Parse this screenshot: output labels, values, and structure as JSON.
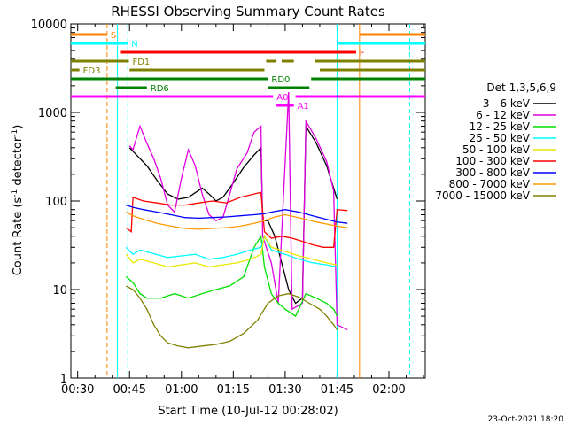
{
  "chart_data": {
    "type": "line",
    "title": "RHESSI Observing Summary Count Rates",
    "xlabel": "Start Time (10-Jul-12 00:28:02)",
    "ylabel_main": "Count Rate (s",
    "ylabel_sup1": "-1",
    "ylabel_mid": " detector",
    "ylabel_sup2": "-1",
    "ylabel_end": ")",
    "yscale": "log",
    "ylim": [
      1,
      10000
    ],
    "xlim_minutes": [
      28.03,
      130.5
    ],
    "x_ticks": [
      {
        "label": "00:30",
        "minutes": 30
      },
      {
        "label": "00:45",
        "minutes": 45
      },
      {
        "label": "01:00",
        "minutes": 60
      },
      {
        "label": "01:15",
        "minutes": 75
      },
      {
        "label": "01:30",
        "minutes": 90
      },
      {
        "label": "01:45",
        "minutes": 105
      },
      {
        "label": "02:00",
        "minutes": 120
      }
    ],
    "y_ticks": [
      {
        "label": "1",
        "value": 1
      },
      {
        "label": "10",
        "value": 10
      },
      {
        "label": "100",
        "value": 100
      },
      {
        "label": "1000",
        "value": 1000
      },
      {
        "label": "10000",
        "value": 10000
      }
    ],
    "legend": {
      "title": "Det 1,3,5,6,9",
      "placement": "right"
    },
    "series": [
      {
        "name": "3 - 6 keV",
        "color": "#000000",
        "points": [
          [
            45,
            400
          ],
          [
            47,
            330
          ],
          [
            50,
            250
          ],
          [
            53,
            170
          ],
          [
            56,
            120
          ],
          [
            59,
            105
          ],
          [
            62,
            110
          ],
          [
            66,
            140
          ],
          [
            68,
            120
          ],
          [
            70,
            100
          ],
          [
            72,
            110
          ],
          [
            75,
            160
          ],
          [
            78,
            240
          ],
          [
            81,
            330
          ],
          [
            83,
            400
          ],
          [
            83.5,
            60
          ],
          [
            85,
            60
          ],
          [
            87,
            40
          ],
          [
            89,
            20
          ],
          [
            91,
            10
          ],
          [
            93,
            7
          ],
          [
            95,
            8
          ],
          [
            96,
            700
          ],
          [
            99,
            450
          ],
          [
            102,
            250
          ],
          [
            104,
            140
          ],
          [
            105,
            105
          ]
        ]
      },
      {
        "name": "6 - 12 keV",
        "color": "#e000e0",
        "points": [
          [
            45,
            420
          ],
          [
            46,
            380
          ],
          [
            48,
            700
          ],
          [
            50,
            450
          ],
          [
            52,
            300
          ],
          [
            54,
            180
          ],
          [
            56,
            90
          ],
          [
            58,
            75
          ],
          [
            60,
            180
          ],
          [
            62,
            380
          ],
          [
            64,
            250
          ],
          [
            66,
            120
          ],
          [
            68,
            70
          ],
          [
            70,
            60
          ],
          [
            72,
            65
          ],
          [
            74,
            120
          ],
          [
            76,
            230
          ],
          [
            79,
            350
          ],
          [
            81,
            600
          ],
          [
            83,
            700
          ],
          [
            83.5,
            40
          ],
          [
            86,
            20
          ],
          [
            88,
            7
          ],
          [
            91,
            1700
          ],
          [
            92,
            6
          ],
          [
            95,
            7
          ],
          [
            96,
            800
          ],
          [
            99,
            500
          ],
          [
            102,
            280
          ],
          [
            104,
            130
          ],
          [
            105,
            4
          ],
          [
            108,
            3.5
          ]
        ]
      },
      {
        "name": "12 - 25 keV",
        "color": "#00e000",
        "points": [
          [
            44,
            14
          ],
          [
            46,
            12
          ],
          [
            48,
            9
          ],
          [
            50,
            8
          ],
          [
            54,
            8
          ],
          [
            58,
            9
          ],
          [
            62,
            8
          ],
          [
            66,
            9
          ],
          [
            70,
            10
          ],
          [
            74,
            11
          ],
          [
            78,
            14
          ],
          [
            81,
            30
          ],
          [
            83,
            40
          ],
          [
            84,
            18
          ],
          [
            86,
            9
          ],
          [
            88,
            7
          ],
          [
            90,
            6
          ],
          [
            93,
            5
          ],
          [
            96,
            9
          ],
          [
            99,
            8
          ],
          [
            102,
            7
          ],
          [
            104,
            6
          ],
          [
            105,
            5
          ]
        ]
      },
      {
        "name": "25 - 50 keV",
        "color": "#00ffff",
        "points": [
          [
            44,
            30
          ],
          [
            46,
            25
          ],
          [
            48,
            28
          ],
          [
            51,
            26
          ],
          [
            56,
            23
          ],
          [
            60,
            24
          ],
          [
            64,
            25
          ],
          [
            68,
            22
          ],
          [
            72,
            23
          ],
          [
            76,
            25
          ],
          [
            80,
            28
          ],
          [
            83,
            30
          ],
          [
            84,
            40
          ],
          [
            86,
            28
          ],
          [
            90,
            25
          ],
          [
            94,
            22
          ],
          [
            98,
            20
          ],
          [
            102,
            19
          ],
          [
            105,
            18
          ]
        ]
      },
      {
        "name": "50 - 100 keV",
        "color": "#e8e800",
        "points": [
          [
            44,
            25
          ],
          [
            46,
            20
          ],
          [
            48,
            22
          ],
          [
            52,
            20
          ],
          [
            56,
            18
          ],
          [
            60,
            19
          ],
          [
            64,
            20
          ],
          [
            68,
            18
          ],
          [
            72,
            19
          ],
          [
            76,
            20
          ],
          [
            80,
            22
          ],
          [
            83,
            25
          ],
          [
            84,
            40
          ],
          [
            86,
            30
          ],
          [
            90,
            27
          ],
          [
            94,
            24
          ],
          [
            98,
            22
          ],
          [
            102,
            20
          ],
          [
            105,
            19
          ]
        ]
      },
      {
        "name": "100 - 300 keV",
        "color": "#ff0000",
        "points": [
          [
            44,
            50
          ],
          [
            45.5,
            45
          ],
          [
            46,
            110
          ],
          [
            49,
            100
          ],
          [
            53,
            95
          ],
          [
            57,
            90
          ],
          [
            61,
            90
          ],
          [
            65,
            95
          ],
          [
            69,
            100
          ],
          [
            73,
            95
          ],
          [
            77,
            110
          ],
          [
            81,
            120
          ],
          [
            83,
            125
          ],
          [
            84,
            45
          ],
          [
            86,
            38
          ],
          [
            89,
            40
          ],
          [
            92,
            38
          ],
          [
            95,
            35
          ],
          [
            98,
            32
          ],
          [
            101,
            30
          ],
          [
            104,
            30
          ],
          [
            105,
            80
          ],
          [
            108,
            78
          ]
        ]
      },
      {
        "name": "300 - 800 keV",
        "color": "#0000ff",
        "points": [
          [
            44,
            90
          ],
          [
            46,
            85
          ],
          [
            49,
            80
          ],
          [
            53,
            75
          ],
          [
            57,
            70
          ],
          [
            61,
            65
          ],
          [
            65,
            64
          ],
          [
            69,
            65
          ],
          [
            73,
            66
          ],
          [
            77,
            68
          ],
          [
            81,
            70
          ],
          [
            84,
            72
          ],
          [
            86,
            75
          ],
          [
            90,
            80
          ],
          [
            94,
            75
          ],
          [
            98,
            68
          ],
          [
            102,
            62
          ],
          [
            105,
            58
          ],
          [
            108,
            56
          ]
        ]
      },
      {
        "name": "800 - 7000 keV",
        "color": "#ff9900",
        "points": [
          [
            44,
            75
          ],
          [
            46,
            68
          ],
          [
            49,
            62
          ],
          [
            53,
            56
          ],
          [
            57,
            52
          ],
          [
            61,
            49
          ],
          [
            65,
            48
          ],
          [
            69,
            49
          ],
          [
            73,
            50
          ],
          [
            77,
            52
          ],
          [
            81,
            56
          ],
          [
            84,
            60
          ],
          [
            87,
            66
          ],
          [
            90,
            70
          ],
          [
            93,
            66
          ],
          [
            96,
            62
          ],
          [
            99,
            58
          ],
          [
            102,
            55
          ],
          [
            105,
            52
          ],
          [
            108,
            50
          ]
        ]
      },
      {
        "name": "7000 - 15000 keV",
        "color": "#808000",
        "points": [
          [
            44,
            11
          ],
          [
            46,
            10
          ],
          [
            48,
            8
          ],
          [
            50,
            6
          ],
          [
            52,
            4
          ],
          [
            54,
            3
          ],
          [
            56,
            2.5
          ],
          [
            59,
            2.3
          ],
          [
            62,
            2.2
          ],
          [
            66,
            2.3
          ],
          [
            70,
            2.4
          ],
          [
            74,
            2.6
          ],
          [
            78,
            3.2
          ],
          [
            82,
            4.5
          ],
          [
            85,
            7
          ],
          [
            88,
            8.5
          ],
          [
            91,
            9
          ],
          [
            94,
            8.2
          ],
          [
            97,
            7
          ],
          [
            100,
            6
          ],
          [
            102,
            5
          ],
          [
            104,
            4
          ],
          [
            105,
            3.5
          ]
        ]
      }
    ],
    "state_bars": [
      {
        "label": "S",
        "color": "#ff8000",
        "level": 1,
        "segments": [
          [
            28.03,
            38.5
          ],
          [
            111.5,
            130.5
          ]
        ]
      },
      {
        "label": "N",
        "color": "#00ffff",
        "level": 2,
        "segments": [
          [
            28.03,
            44.5
          ],
          [
            105,
            130.5
          ]
        ]
      },
      {
        "label": "F",
        "color": "#ff0000",
        "level": 3,
        "segments": [
          [
            42.5,
            110.5
          ]
        ]
      },
      {
        "label": "FD1",
        "color": "#808000",
        "level": 4,
        "segments": [
          [
            28.03,
            44.8
          ],
          [
            84.5,
            87.5
          ],
          [
            89,
            92.5
          ],
          [
            98.5,
            130.5
          ]
        ]
      },
      {
        "label": "FD3",
        "color": "#808000",
        "level": 5,
        "segments": [
          [
            28.03,
            30.5
          ],
          [
            45,
            84
          ],
          [
            100,
            130.5
          ]
        ]
      },
      {
        "label": "RD0",
        "color": "#008000",
        "level": 6,
        "segments": [
          [
            28.03,
            85
          ],
          [
            97.5,
            130.5
          ]
        ]
      },
      {
        "label": "RD6",
        "color": "#008000",
        "level": 7,
        "segments": [
          [
            41,
            50
          ],
          [
            85,
            97
          ]
        ]
      },
      {
        "label": "A0",
        "color": "#ff00ff",
        "level": 8,
        "segments": [
          [
            28.03,
            86.5
          ],
          [
            93,
            130.5
          ]
        ]
      },
      {
        "label": "A1",
        "color": "#ff00ff",
        "level": 9,
        "segments": [
          [
            87.5,
            92.5
          ]
        ]
      }
    ],
    "vertical_markers": [
      {
        "minutes": 38.5,
        "color": "#ff8000",
        "dashed": true
      },
      {
        "minutes": 41.5,
        "color": "#00ffff",
        "dashed": false
      },
      {
        "minutes": 44.5,
        "color": "#00ffff",
        "dashed": true
      },
      {
        "minutes": 105,
        "color": "#00ffff",
        "dashed": false
      },
      {
        "minutes": 111.5,
        "color": "#ff8000",
        "dashed": false
      },
      {
        "minutes": 125.5,
        "color": "#ff8000",
        "dashed": true
      },
      {
        "minutes": 126,
        "color": "#00ffff",
        "dashed": true
      }
    ]
  },
  "footer": {
    "timestamp": "23-Oct-2021 18:20"
  }
}
